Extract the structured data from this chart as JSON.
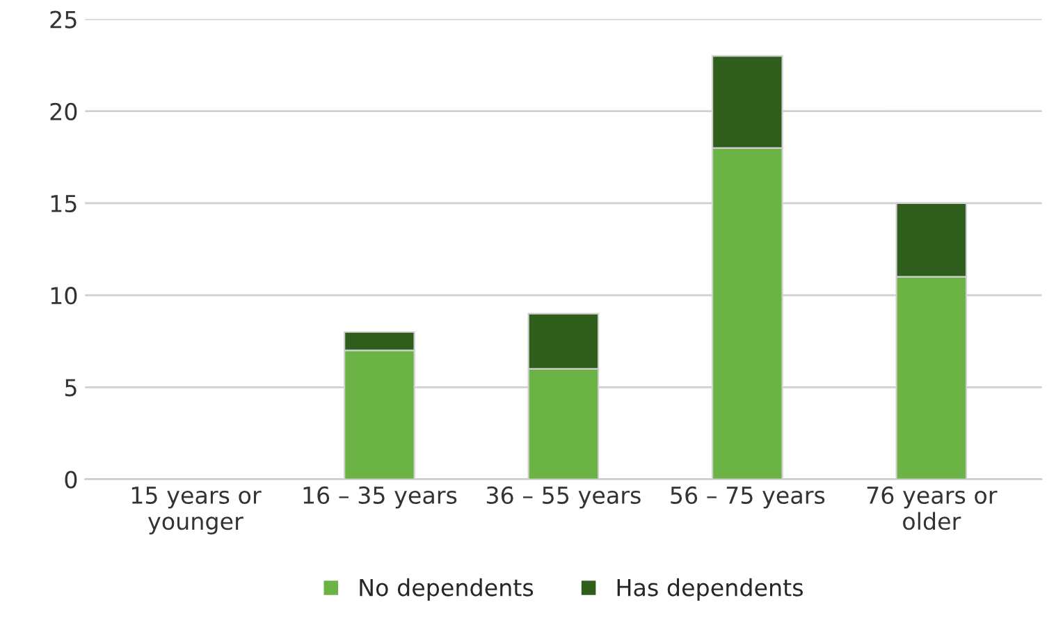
{
  "chart_data": {
    "type": "bar",
    "stacked": true,
    "categories": [
      "15 years or\nyounger",
      "16 – 35 years",
      "36 – 55 years",
      "56 – 75 years",
      "76 years or\nolder"
    ],
    "series": [
      {
        "name": "No dependents",
        "color": "#6ab344",
        "values": [
          0,
          7,
          6,
          18,
          11
        ]
      },
      {
        "name": "Has dependents",
        "color": "#2f5e1c",
        "values": [
          0,
          1,
          3,
          5,
          4
        ]
      }
    ],
    "ylim": [
      0,
      25
    ],
    "yticks": [
      0,
      5,
      10,
      15,
      20,
      25
    ],
    "grid": "y",
    "legend": "bottom"
  }
}
